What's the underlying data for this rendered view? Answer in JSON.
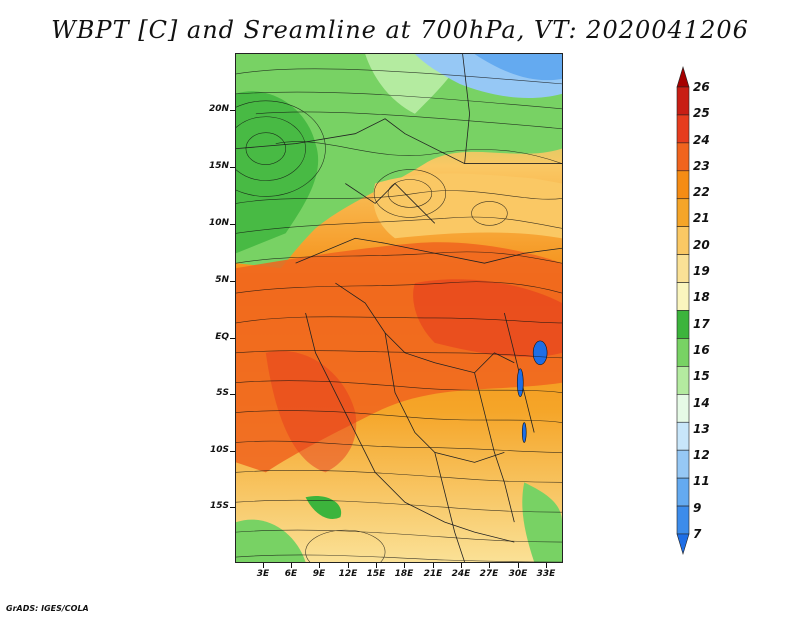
{
  "title": "WBPT [C] and Sreamline at 700hPa, VT: 2020041206",
  "footer": "GrADS: IGES/COLA",
  "map": {
    "lat_labels": [
      "20N",
      "15N",
      "10N",
      "5N",
      "EQ",
      "5S",
      "10S",
      "15S"
    ],
    "lon_labels": [
      "3E",
      "6E",
      "9E",
      "12E",
      "15E",
      "18E",
      "21E",
      "24E",
      "27E",
      "30E",
      "33E"
    ],
    "fields": {
      "variable": "wet-bulb potential temperature",
      "units": "C",
      "level": "700hPa",
      "overlay": "streamlines"
    }
  },
  "colorbar": {
    "labels": [
      "26",
      "25",
      "24",
      "23",
      "22",
      "21",
      "20",
      "19",
      "18",
      "17",
      "16",
      "15",
      "14",
      "13",
      "12",
      "11",
      "9",
      "7"
    ],
    "colors": [
      "#a50000",
      "#c81e14",
      "#e63c1e",
      "#f0641e",
      "#f58c14",
      "#f5a528",
      "#fac864",
      "#fae196",
      "#faf5be",
      "#3cb43c",
      "#78d264",
      "#b4eba0",
      "#e6fae6",
      "#c8e6fa",
      "#96c8f5",
      "#64aaf0",
      "#3c8ceb",
      "#1e6ee6"
    ]
  }
}
